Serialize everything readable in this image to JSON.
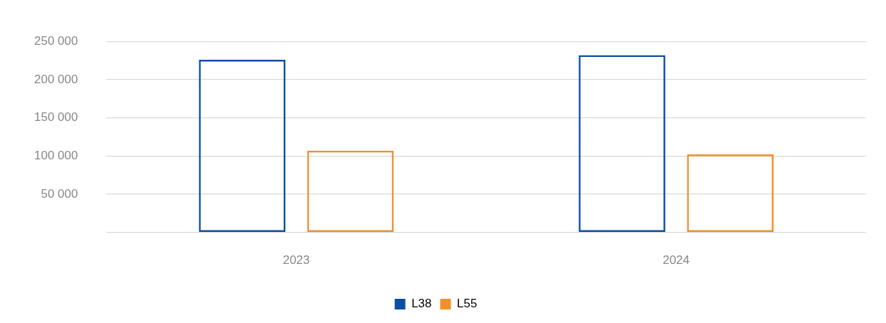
{
  "chart_data": {
    "type": "bar",
    "categories": [
      "2023",
      "2024"
    ],
    "series": [
      {
        "name": "L38",
        "color": "#0a4fa3",
        "values": [
          226000,
          232000
        ]
      },
      {
        "name": "L55",
        "color": "#ef9128",
        "values": [
          107000,
          102000
        ]
      }
    ],
    "ylim": [
      0,
      250000
    ],
    "yticks": [
      {
        "value": 0,
        "label": null
      },
      {
        "value": 50000,
        "label": "50 000"
      },
      {
        "value": 100000,
        "label": "100 000"
      },
      {
        "value": 150000,
        "label": "150 000"
      },
      {
        "value": 200000,
        "label": "200 000"
      },
      {
        "value": 250000,
        "label": "250 000"
      }
    ],
    "grid": "y",
    "legend": "bottom"
  }
}
